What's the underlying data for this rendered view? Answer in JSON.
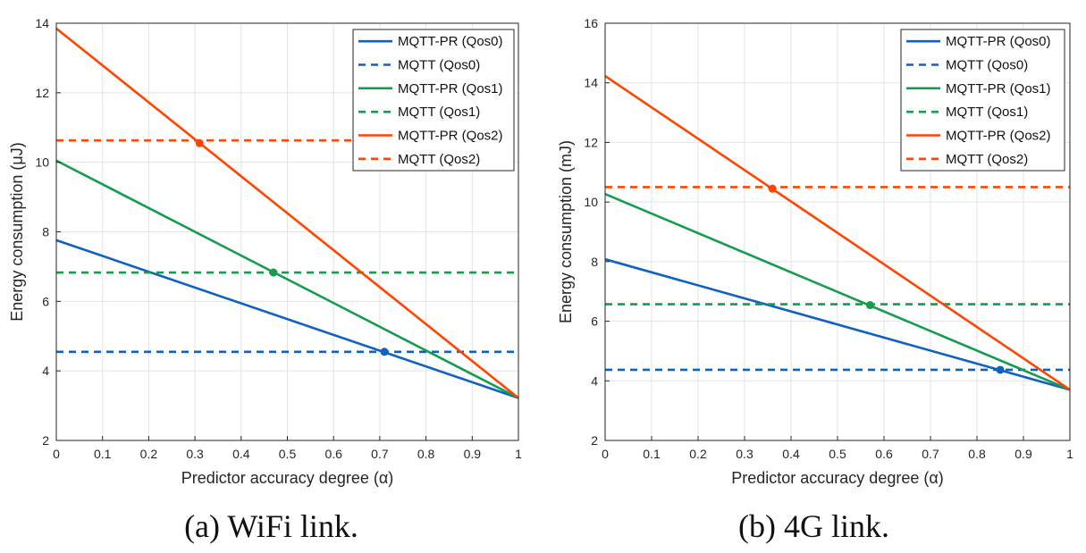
{
  "colors": {
    "qos0": "#0f62c2",
    "qos1": "#169c4e",
    "qos2": "#ff4500",
    "grid": "#e3e3e3",
    "axis": "#262626"
  },
  "chart_data": [
    {
      "type": "line",
      "caption": "(a) WiFi link.",
      "xlabel": "Predictor accuracy degree (α)",
      "ylabel": "Energy consumption (μJ)",
      "xlim": [
        0,
        1
      ],
      "ylim": [
        2,
        14
      ],
      "xticks": [
        "0",
        "0.1",
        "0.2",
        "0.3",
        "0.4",
        "0.5",
        "0.6",
        "0.7",
        "0.8",
        "0.9",
        "1"
      ],
      "yticks": [
        "2",
        "4",
        "6",
        "8",
        "10",
        "12",
        "14"
      ],
      "grid": true,
      "legend_position": "top-right",
      "series": [
        {
          "name": "MQTT-PR (Qos0)",
          "style": "solid",
          "color_key": "qos0",
          "x": [
            0,
            1
          ],
          "y": [
            7.76,
            3.22
          ]
        },
        {
          "name": "MQTT (Qos0)",
          "style": "dashed",
          "color_key": "qos0",
          "x": [
            0,
            1
          ],
          "y": [
            4.55,
            4.55
          ]
        },
        {
          "name": "MQTT-PR (Qos1)",
          "style": "solid",
          "color_key": "qos1",
          "x": [
            0,
            1
          ],
          "y": [
            10.05,
            3.22
          ]
        },
        {
          "name": "MQTT (Qos1)",
          "style": "dashed",
          "color_key": "qos1",
          "x": [
            0,
            1
          ],
          "y": [
            6.83,
            6.83
          ]
        },
        {
          "name": "MQTT-PR (Qos2)",
          "style": "solid",
          "color_key": "qos2",
          "x": [
            0,
            1
          ],
          "y": [
            13.85,
            3.22
          ]
        },
        {
          "name": "MQTT (Qos2)",
          "style": "dashed",
          "color_key": "qos2",
          "x": [
            0,
            1
          ],
          "y": [
            10.63,
            10.63
          ]
        }
      ],
      "markers": [
        {
          "x": 0.71,
          "y": 4.55,
          "color_key": "qos0"
        },
        {
          "x": 0.47,
          "y": 6.83,
          "color_key": "qos1"
        },
        {
          "x": 0.31,
          "y": 10.55,
          "color_key": "qos2"
        }
      ]
    },
    {
      "type": "line",
      "caption": "(b) 4G link.",
      "xlabel": "Predictor accuracy degree (α)",
      "ylabel": "Energy consumption (mJ)",
      "xlim": [
        0,
        1
      ],
      "ylim": [
        2,
        16
      ],
      "xticks": [
        "0",
        "0.1",
        "0.2",
        "0.3",
        "0.4",
        "0.5",
        "0.6",
        "0.7",
        "0.8",
        "0.9",
        "1"
      ],
      "yticks": [
        "2",
        "4",
        "6",
        "8",
        "10",
        "12",
        "14",
        "16"
      ],
      "grid": true,
      "legend_position": "top-right",
      "series": [
        {
          "name": "MQTT-PR (Qos0)",
          "style": "solid",
          "color_key": "qos0",
          "x": [
            0,
            1
          ],
          "y": [
            8.08,
            3.7
          ]
        },
        {
          "name": "MQTT (Qos0)",
          "style": "dashed",
          "color_key": "qos0",
          "x": [
            0,
            1
          ],
          "y": [
            4.37,
            4.37
          ]
        },
        {
          "name": "MQTT-PR (Qos1)",
          "style": "solid",
          "color_key": "qos1",
          "x": [
            0,
            1
          ],
          "y": [
            10.27,
            3.7
          ]
        },
        {
          "name": "MQTT (Qos1)",
          "style": "dashed",
          "color_key": "qos1",
          "x": [
            0,
            1
          ],
          "y": [
            6.57,
            6.57
          ]
        },
        {
          "name": "MQTT-PR (Qos2)",
          "style": "solid",
          "color_key": "qos2",
          "x": [
            0,
            1
          ],
          "y": [
            14.23,
            3.7
          ]
        },
        {
          "name": "MQTT (Qos2)",
          "style": "dashed",
          "color_key": "qos2",
          "x": [
            0,
            1
          ],
          "y": [
            10.5,
            10.5
          ]
        }
      ],
      "markers": [
        {
          "x": 0.85,
          "y": 4.37,
          "color_key": "qos0"
        },
        {
          "x": 0.57,
          "y": 6.54,
          "color_key": "qos1"
        },
        {
          "x": 0.36,
          "y": 10.45,
          "color_key": "qos2"
        }
      ]
    }
  ]
}
